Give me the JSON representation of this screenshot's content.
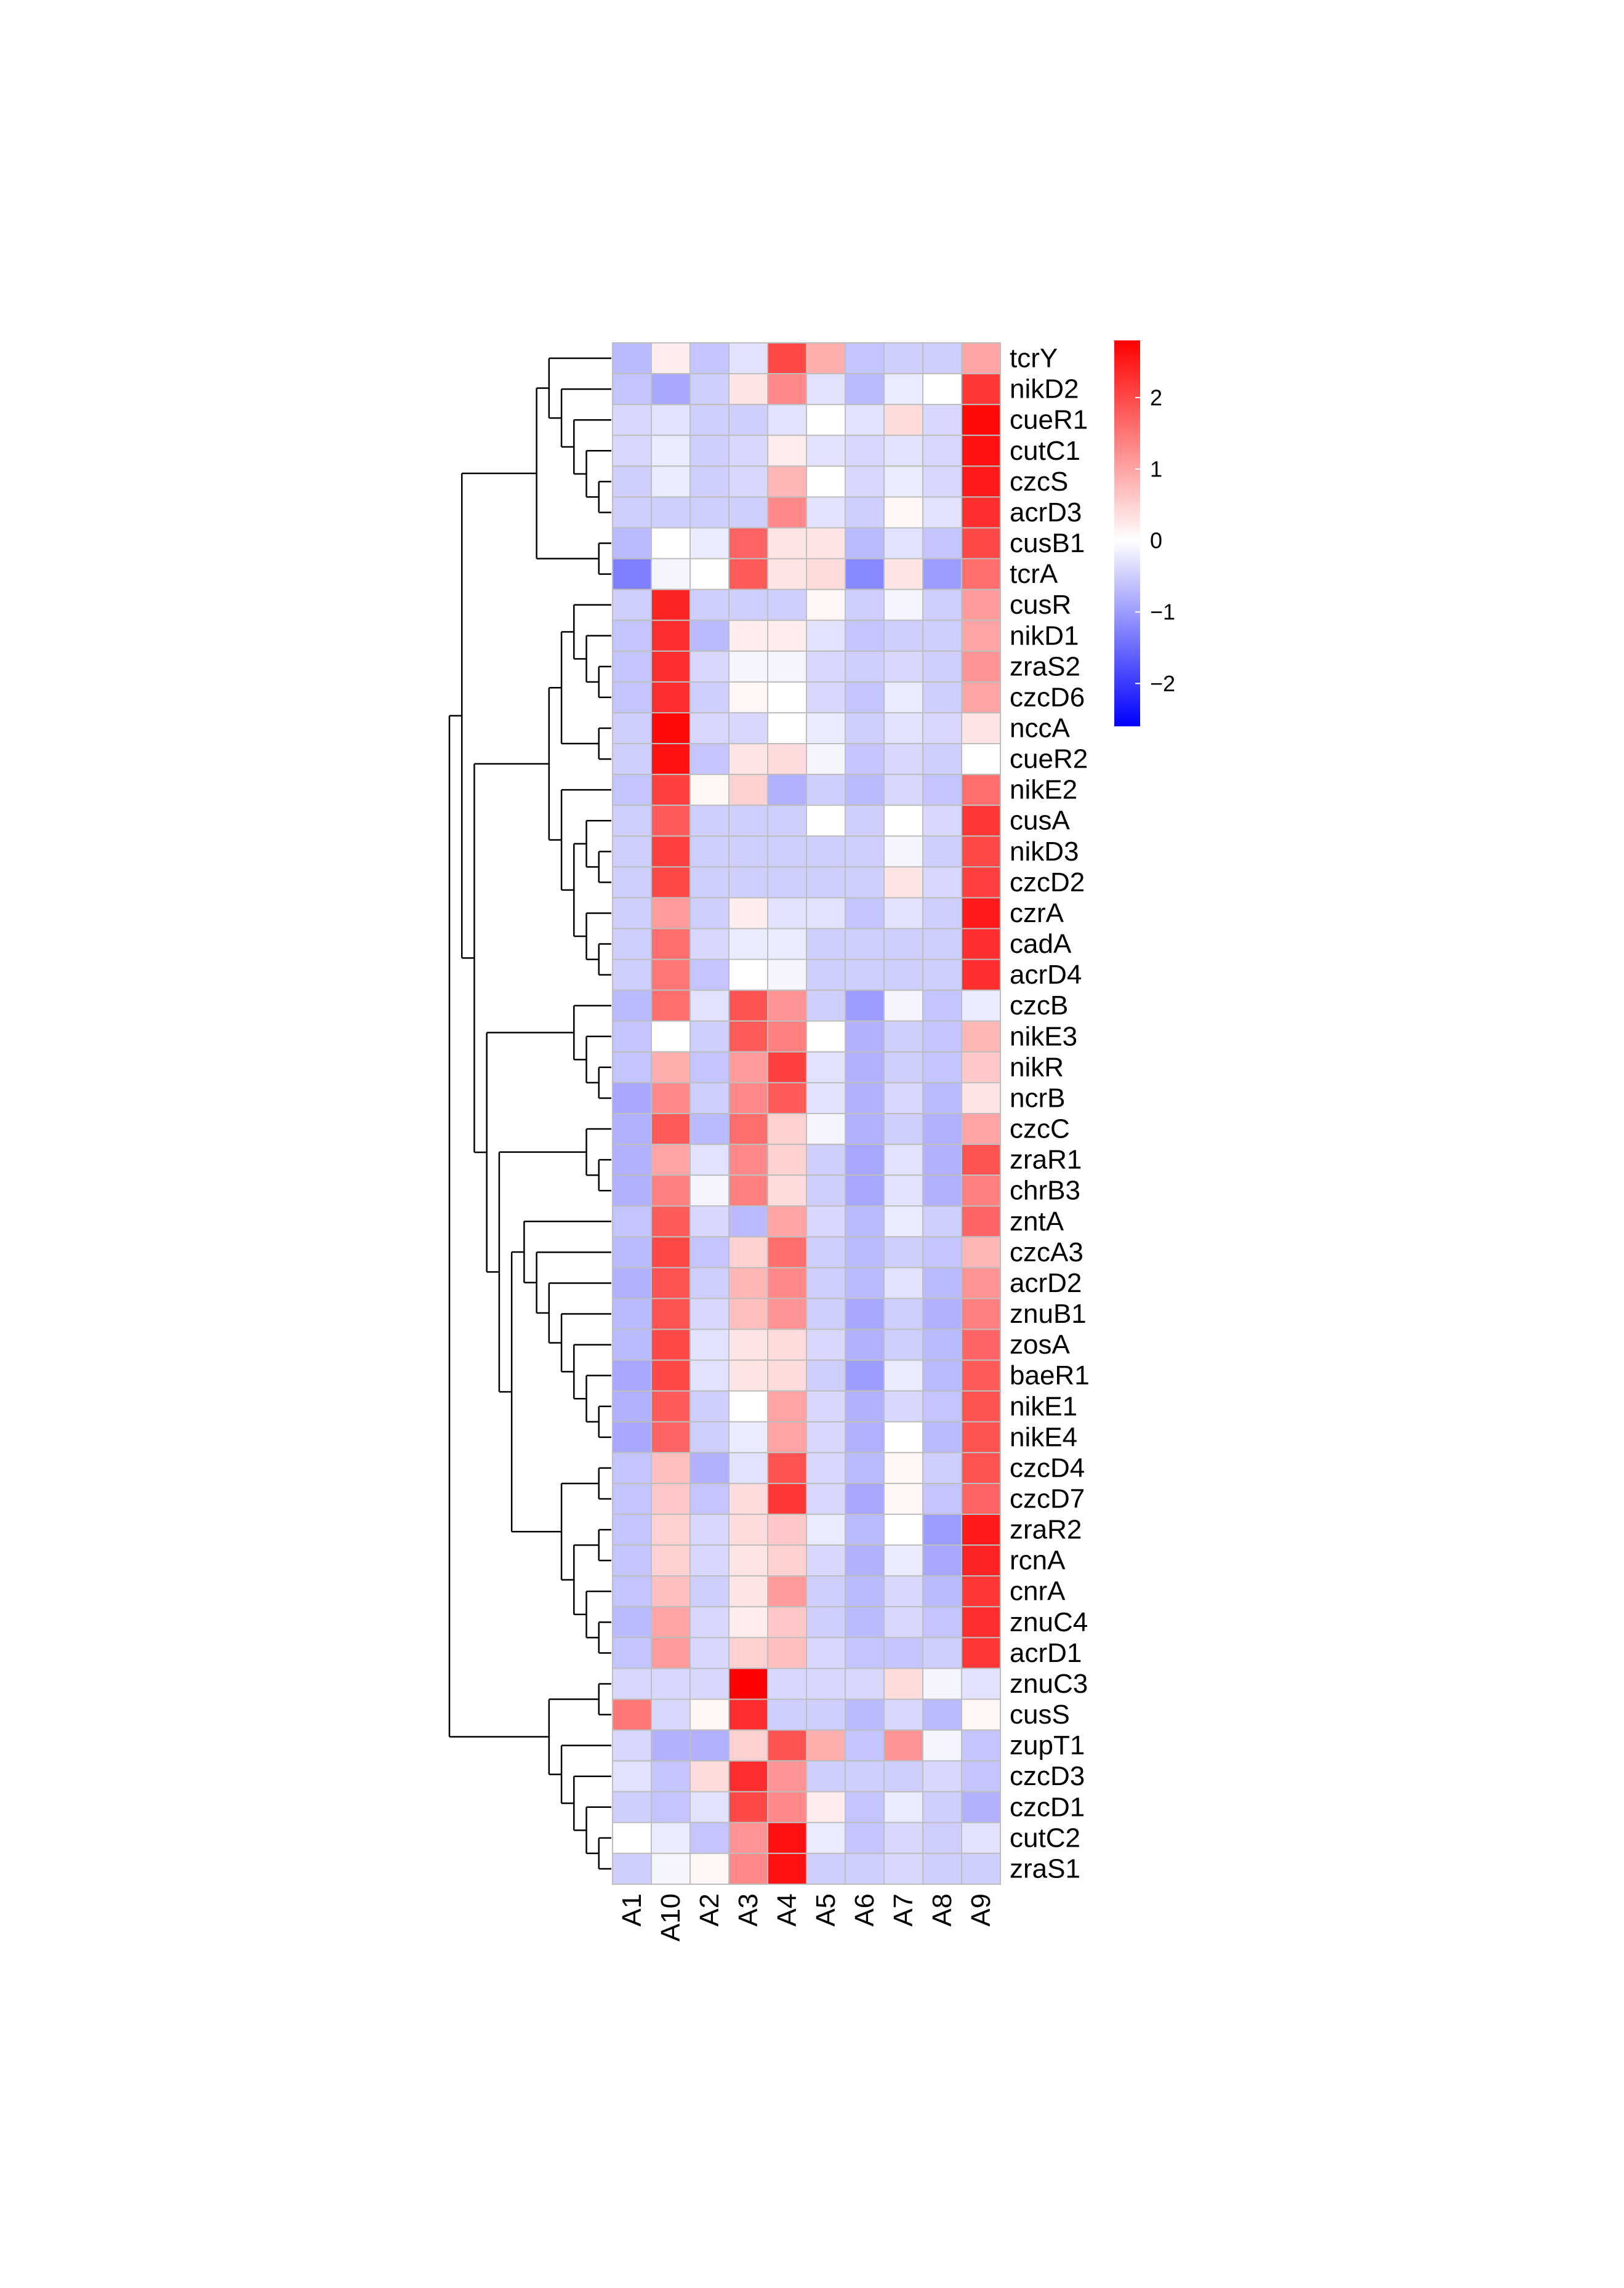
{
  "chart_data": {
    "type": "heatmap",
    "columns": [
      "A1",
      "A10",
      "A2",
      "A3",
      "A4",
      "A5",
      "A6",
      "A7",
      "A8",
      "A9"
    ],
    "rows": [
      "tcrY",
      "nikD2",
      "cueR1",
      "cutC1",
      "czcS",
      "acrD3",
      "cusB1",
      "tcrA",
      "cusR",
      "nikD1",
      "zraS2",
      "czcD6",
      "nccA",
      "cueR2",
      "nikE2",
      "cusA",
      "nikD3",
      "czcD2",
      "czrA",
      "cadA",
      "acrD4",
      "czcB",
      "nikE3",
      "nikR",
      "ncrB",
      "czcC",
      "zraR1",
      "chrB3",
      "zntA",
      "czcA3",
      "acrD2",
      "znuB1",
      "zosA",
      "baeR1",
      "nikE1",
      "nikE4",
      "czcD4",
      "czcD7",
      "zraR2",
      "rcnA",
      "cnrA",
      "znuC4",
      "acrD1",
      "znuC3",
      "cusS",
      "zupT1",
      "czcD3",
      "czcD1",
      "cutC2",
      "zraS1"
    ],
    "values": [
      [
        -0.7,
        0.2,
        -0.6,
        -0.3,
        2.0,
        0.9,
        -0.6,
        -0.5,
        -0.5,
        1.0
      ],
      [
        -0.6,
        -0.9,
        -0.5,
        0.3,
        1.3,
        -0.3,
        -0.7,
        -0.2,
        0.0,
        2.2
      ],
      [
        -0.4,
        -0.3,
        -0.5,
        -0.5,
        -0.3,
        0.0,
        -0.3,
        0.4,
        -0.4,
        2.7
      ],
      [
        -0.4,
        -0.2,
        -0.5,
        -0.4,
        0.2,
        -0.3,
        -0.4,
        -0.3,
        -0.4,
        2.6
      ],
      [
        -0.5,
        -0.2,
        -0.5,
        -0.4,
        0.8,
        0.0,
        -0.4,
        -0.2,
        -0.4,
        2.5
      ],
      [
        -0.5,
        -0.5,
        -0.5,
        -0.5,
        1.3,
        -0.3,
        -0.5,
        0.1,
        -0.3,
        2.3
      ],
      [
        -0.7,
        0.0,
        -0.2,
        1.7,
        0.3,
        0.3,
        -0.7,
        -0.3,
        -0.6,
        2.0
      ],
      [
        -1.3,
        -0.1,
        0.0,
        1.8,
        0.3,
        0.4,
        -1.2,
        0.3,
        -1.0,
        1.6
      ],
      [
        -0.5,
        2.4,
        -0.5,
        -0.5,
        -0.5,
        0.1,
        -0.5,
        -0.1,
        -0.5,
        1.1
      ],
      [
        -0.6,
        2.3,
        -0.7,
        0.2,
        0.2,
        -0.3,
        -0.6,
        -0.5,
        -0.5,
        1.0
      ],
      [
        -0.6,
        2.3,
        -0.4,
        -0.1,
        -0.1,
        -0.4,
        -0.5,
        -0.4,
        -0.5,
        1.2
      ],
      [
        -0.6,
        2.3,
        -0.5,
        0.1,
        0.0,
        -0.4,
        -0.6,
        -0.2,
        -0.5,
        1.0
      ],
      [
        -0.5,
        2.7,
        -0.4,
        -0.4,
        0.0,
        -0.2,
        -0.5,
        -0.3,
        -0.4,
        0.3
      ],
      [
        -0.5,
        2.6,
        -0.6,
        0.3,
        0.4,
        -0.1,
        -0.6,
        -0.4,
        -0.5,
        0.0
      ],
      [
        -0.6,
        2.1,
        0.1,
        0.5,
        -0.8,
        -0.5,
        -0.7,
        -0.4,
        -0.6,
        1.6
      ],
      [
        -0.5,
        1.8,
        -0.5,
        -0.5,
        -0.5,
        0.0,
        -0.5,
        0.0,
        -0.4,
        2.2
      ],
      [
        -0.5,
        2.1,
        -0.5,
        -0.5,
        -0.5,
        -0.5,
        -0.5,
        -0.1,
        -0.5,
        2.0
      ],
      [
        -0.5,
        2.0,
        -0.5,
        -0.5,
        -0.5,
        -0.5,
        -0.5,
        0.3,
        -0.4,
        2.1
      ],
      [
        -0.5,
        1.1,
        -0.5,
        0.2,
        -0.3,
        -0.3,
        -0.6,
        -0.3,
        -0.5,
        2.5
      ],
      [
        -0.5,
        1.6,
        -0.4,
        -0.2,
        -0.2,
        -0.5,
        -0.5,
        -0.5,
        -0.5,
        2.3
      ],
      [
        -0.5,
        1.5,
        -0.6,
        0.0,
        -0.1,
        -0.5,
        -0.5,
        -0.5,
        -0.5,
        2.3
      ],
      [
        -0.7,
        1.6,
        -0.3,
        1.9,
        1.2,
        -0.5,
        -1.0,
        -0.1,
        -0.6,
        -0.2
      ],
      [
        -0.6,
        0.0,
        -0.5,
        1.8,
        1.4,
        0.0,
        -0.8,
        -0.5,
        -0.6,
        0.8
      ],
      [
        -0.6,
        0.9,
        -0.6,
        1.1,
        2.1,
        -0.3,
        -0.8,
        -0.5,
        -0.6,
        0.6
      ],
      [
        -0.9,
        1.3,
        -0.5,
        1.3,
        1.8,
        -0.3,
        -0.8,
        -0.4,
        -0.7,
        0.3
      ],
      [
        -0.8,
        1.8,
        -0.7,
        1.6,
        0.5,
        -0.1,
        -0.8,
        -0.5,
        -0.8,
        1.0
      ],
      [
        -0.8,
        1.0,
        -0.3,
        1.3,
        0.5,
        -0.5,
        -0.9,
        -0.3,
        -0.8,
        1.9
      ],
      [
        -0.8,
        1.4,
        -0.1,
        1.4,
        0.4,
        -0.5,
        -0.9,
        -0.3,
        -0.8,
        1.4
      ],
      [
        -0.6,
        1.8,
        -0.4,
        -0.7,
        1.0,
        -0.4,
        -0.7,
        -0.2,
        -0.5,
        1.7
      ],
      [
        -0.7,
        2.0,
        -0.6,
        0.5,
        1.6,
        -0.5,
        -0.7,
        -0.5,
        -0.6,
        0.8
      ],
      [
        -0.8,
        1.9,
        -0.5,
        0.8,
        1.3,
        -0.5,
        -0.7,
        -0.3,
        -0.7,
        1.2
      ],
      [
        -0.7,
        1.9,
        -0.4,
        0.7,
        1.2,
        -0.5,
        -0.9,
        -0.5,
        -0.8,
        1.4
      ],
      [
        -0.7,
        2.0,
        -0.3,
        0.3,
        0.4,
        -0.4,
        -0.8,
        -0.5,
        -0.7,
        1.7
      ],
      [
        -0.9,
        2.0,
        -0.3,
        0.3,
        0.4,
        -0.5,
        -1.0,
        -0.2,
        -0.7,
        1.8
      ],
      [
        -0.8,
        1.8,
        -0.5,
        0.0,
        1.0,
        -0.4,
        -0.8,
        -0.4,
        -0.6,
        1.9
      ],
      [
        -0.9,
        1.7,
        -0.5,
        -0.2,
        1.0,
        -0.4,
        -0.8,
        0.0,
        -0.7,
        1.9
      ],
      [
        -0.6,
        0.7,
        -0.8,
        -0.3,
        1.9,
        -0.4,
        -0.7,
        0.1,
        -0.5,
        1.9
      ],
      [
        -0.6,
        0.6,
        -0.6,
        0.4,
        2.2,
        -0.4,
        -0.9,
        0.1,
        -0.6,
        1.7
      ],
      [
        -0.6,
        0.5,
        -0.4,
        0.4,
        0.6,
        -0.2,
        -0.7,
        0.0,
        -1.0,
        2.5
      ],
      [
        -0.6,
        0.5,
        -0.4,
        0.3,
        0.5,
        -0.4,
        -0.8,
        -0.2,
        -0.9,
        2.4
      ],
      [
        -0.6,
        0.7,
        -0.5,
        0.3,
        1.1,
        -0.5,
        -0.7,
        -0.4,
        -0.7,
        2.2
      ],
      [
        -0.7,
        1.0,
        -0.4,
        0.2,
        0.6,
        -0.5,
        -0.7,
        -0.4,
        -0.6,
        2.3
      ],
      [
        -0.6,
        1.1,
        -0.4,
        0.5,
        0.7,
        -0.4,
        -0.6,
        -0.6,
        -0.5,
        2.2
      ],
      [
        -0.4,
        -0.4,
        -0.4,
        2.8,
        -0.4,
        -0.4,
        -0.4,
        0.4,
        -0.1,
        -0.3
      ],
      [
        1.5,
        -0.4,
        0.1,
        2.3,
        -0.5,
        -0.5,
        -0.7,
        -0.4,
        -0.7,
        0.1
      ],
      [
        -0.4,
        -0.8,
        -0.8,
        0.5,
        1.9,
        0.9,
        -0.6,
        1.2,
        -0.1,
        -0.6
      ],
      [
        -0.3,
        -0.6,
        0.4,
        2.3,
        1.2,
        -0.5,
        -0.5,
        -0.5,
        -0.4,
        -0.6
      ],
      [
        -0.5,
        -0.6,
        -0.3,
        2.0,
        1.3,
        0.2,
        -0.6,
        -0.2,
        -0.5,
        -0.8
      ],
      [
        0.0,
        -0.2,
        -0.6,
        1.2,
        2.6,
        -0.2,
        -0.6,
        -0.4,
        -0.5,
        -0.3
      ],
      [
        -0.5,
        -0.1,
        0.1,
        1.3,
        2.6,
        -0.5,
        -0.5,
        -0.4,
        -0.5,
        -0.5
      ]
    ],
    "row_dendrogram": {
      "tree": [
        [
          [
            [
              [
                "tcrY"
              ],
              [
                [
                  "nikD2"
                ],
                [
                  [
                    "cueR1"
                  ],
                  [
                    [
                      "cutC1"
                    ],
                    [
                      [
                        "czcS"
                      ],
                      [
                        "acrD3"
                      ]
                    ]
                  ]
                ]
              ]
            ],
            [
              [
                "cusB1"
              ],
              [
                "tcrA"
              ]
            ]
          ],
          [
            [
              [
                [
                  [
                    "cusR"
                  ],
                  [
                    [
                      "nikD1"
                    ],
                    [
                      [
                        "zraS2"
                      ],
                      [
                        "czcD6"
                      ]
                    ]
                  ]
                ],
                [
                  [
                    "nccA"
                  ],
                  [
                    "cueR2"
                  ]
                ]
              ],
              [
                [
                  "nikE2"
                ],
                [
                  [
                    [
                      "cusA"
                    ],
                    [
                      [
                        "nikD3"
                      ],
                      [
                        "czcD2"
                      ]
                    ]
                  ],
                  [
                    [
                      "czrA"
                    ],
                    [
                      [
                        "cadA"
                      ],
                      [
                        "acrD4"
                      ]
                    ]
                  ]
                ]
              ]
            ],
            [
              [
                [
                  "czcB"
                ],
                [
                  [
                    "nikE3"
                  ],
                  [
                    [
                      "nikR"
                    ],
                    [
                      "ncrB"
                    ]
                  ]
                ]
              ],
              [
                [
                  [
                    "czcC"
                  ],
                  [
                    [
                      "zraR1"
                    ],
                    [
                      "chrB3"
                    ]
                  ]
                ],
                [
                  [
                    [
                      "zntA"
                    ],
                    [
                      [
                        "czcA3"
                      ],
                      [
                        [
                          "acrD2"
                        ],
                        [
                          [
                            "znuB1"
                          ],
                          [
                            [
                              "zosA"
                            ],
                            [
                              [
                                "baeR1"
                              ],
                              [
                                [
                                  "nikE1"
                                ],
                                [
                                  "nikE4"
                                ]
                              ]
                            ]
                          ]
                        ]
                      ]
                    ]
                  ],
                  [
                    [
                      [
                        "czcD4"
                      ],
                      [
                        "czcD7"
                      ]
                    ],
                    [
                      [
                        [
                          "zraR2"
                        ],
                        [
                          "rcnA"
                        ]
                      ],
                      [
                        [
                          "cnrA"
                        ],
                        [
                          [
                            "znuC4"
                          ],
                          [
                            "acrD1"
                          ]
                        ]
                      ]
                    ]
                  ]
                ]
              ]
            ]
          ]
        ],
        [
          [
            [
              "znuC3"
            ],
            [
              "cusS"
            ]
          ],
          [
            [
              "zupT1"
            ],
            [
              [
                "czcD3"
              ],
              [
                [
                  "czcD1"
                ],
                [
                  [
                    "cutC2"
                  ],
                  [
                    "zraS1"
                  ]
                ]
              ]
            ]
          ]
        ]
      ]
    },
    "colorbar": {
      "range": [
        -2.6,
        2.8
      ],
      "ticks": [
        2,
        1,
        0,
        -1,
        -2
      ],
      "tick_labels": [
        "2",
        "1",
        "0",
        "−1",
        "−2"
      ],
      "colors": [
        "#0000ff",
        "#ffffff",
        "#ff0000"
      ]
    },
    "cell_border_color": "#bebebe",
    "title": "",
    "xlabel": "",
    "ylabel": ""
  }
}
